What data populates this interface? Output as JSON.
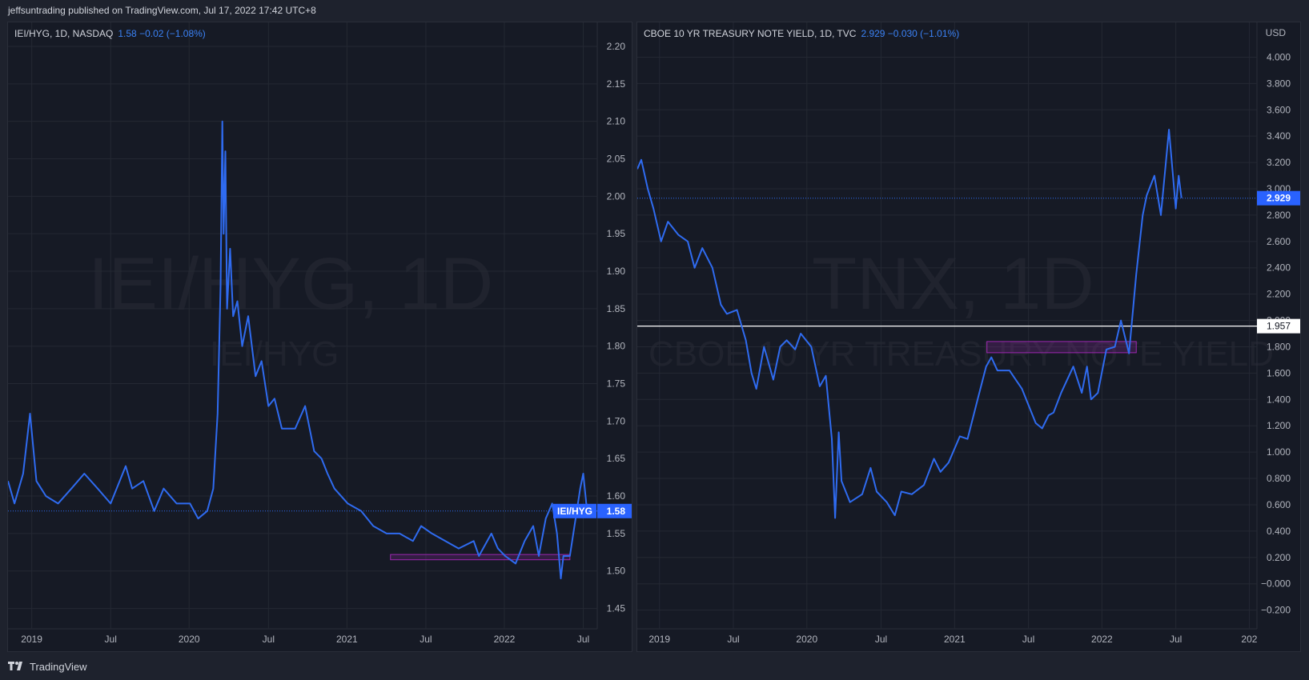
{
  "header": {
    "text": "jeffsuntrading published on TradingView.com, Jul 17, 2022 17:42 UTC+8"
  },
  "footer": {
    "brand": "TradingView"
  },
  "left_pane": {
    "legend_symbol": "IEI/HYG, 1D, NASDAQ",
    "legend_values": "1.58  −0.02 (−1.08%)",
    "watermark_big": "IEI/HYG, 1D",
    "watermark_small": "IEI/HYG",
    "price_tag_symbol": "IEI/HYG",
    "price_tag_value": "1.58",
    "colors": {
      "line": "#2f6bf0",
      "accent": "#2962ff",
      "zone": "#9c27b0"
    }
  },
  "right_pane": {
    "legend_symbol": "CBOE 10 YR TREASURY NOTE YIELD, 1D, TVC",
    "legend_values": "2.929  −0.030 (−1.01%)",
    "watermark_big": "TNX, 1D",
    "watermark_small": "CBOE 10 YR TREASURY NOTE YIELD",
    "currency": "USD",
    "price_tag_value": "2.929",
    "level_tag_value": "1.957",
    "colors": {
      "line": "#2f6bf0",
      "accent": "#2962ff",
      "zone": "#9c27b0",
      "level": "#ffffff"
    }
  },
  "chart_data": [
    {
      "type": "line",
      "title": "IEI/HYG, 1D, NASDAQ",
      "xlabel": "",
      "ylabel": "",
      "x_ticks": [
        "2019",
        "Jul",
        "2020",
        "Jul",
        "2021",
        "Jul",
        "2022",
        "Jul"
      ],
      "y_ticks": [
        "2.20",
        "2.15",
        "2.10",
        "2.05",
        "2.00",
        "1.95",
        "1.90",
        "1.85",
        "1.80",
        "1.75",
        "1.70",
        "1.65",
        "1.60",
        "1.55",
        "1.50",
        "1.45"
      ],
      "ylim": [
        1.425,
        2.232
      ],
      "xlim": [
        "2018-11-05",
        "2022-10-25"
      ],
      "last_value": 1.58,
      "change": "−0.02 (−1.08%)",
      "support_zone": {
        "x_start": "2021-04-10",
        "x_end": "2022-05-31",
        "y_low": 1.515,
        "y_high": 1.522
      },
      "grid": true,
      "series": [
        {
          "x": [
            "2018-11-05",
            "2018-11-20",
            "2018-12-10",
            "2018-12-26",
            "2019-01-10",
            "2019-02-01",
            "2019-03-01",
            "2019-04-01",
            "2019-05-01",
            "2019-06-01",
            "2019-07-01",
            "2019-08-05",
            "2019-08-20",
            "2019-09-15",
            "2019-10-10",
            "2019-11-01",
            "2019-12-01",
            "2020-01-01",
            "2020-01-20",
            "2020-02-10",
            "2020-02-24",
            "2020-03-05",
            "2020-03-12",
            "2020-03-16",
            "2020-03-19",
            "2020-03-23",
            "2020-03-27",
            "2020-04-03",
            "2020-04-10",
            "2020-04-20",
            "2020-05-01",
            "2020-05-15",
            "2020-06-01",
            "2020-06-15",
            "2020-07-01",
            "2020-07-15",
            "2020-08-01",
            "2020-09-01",
            "2020-09-24",
            "2020-10-15",
            "2020-11-01",
            "2020-11-15",
            "2020-12-01",
            "2021-01-01",
            "2021-02-01",
            "2021-03-01",
            "2021-04-01",
            "2021-05-01",
            "2021-06-01",
            "2021-06-20",
            "2021-07-15",
            "2021-08-15",
            "2021-09-15",
            "2021-10-20",
            "2021-11-01",
            "2021-11-30",
            "2021-12-15",
            "2022-01-01",
            "2022-01-25",
            "2022-02-15",
            "2022-03-07",
            "2022-03-20",
            "2022-04-05",
            "2022-04-20",
            "2022-05-01",
            "2022-05-10",
            "2022-05-16",
            "2022-05-31",
            "2022-06-16",
            "2022-06-24",
            "2022-07-01",
            "2022-07-08",
            "2022-07-15"
          ],
          "values": [
            1.62,
            1.59,
            1.63,
            1.71,
            1.62,
            1.6,
            1.59,
            1.61,
            1.63,
            1.61,
            1.59,
            1.64,
            1.61,
            1.62,
            1.58,
            1.61,
            1.59,
            1.59,
            1.57,
            1.58,
            1.61,
            1.71,
            1.88,
            2.1,
            1.95,
            2.06,
            1.85,
            1.93,
            1.84,
            1.86,
            1.8,
            1.84,
            1.76,
            1.78,
            1.72,
            1.73,
            1.69,
            1.69,
            1.72,
            1.66,
            1.65,
            1.63,
            1.61,
            1.59,
            1.58,
            1.56,
            1.55,
            1.55,
            1.54,
            1.56,
            1.55,
            1.54,
            1.53,
            1.54,
            1.52,
            1.55,
            1.53,
            1.52,
            1.51,
            1.54,
            1.56,
            1.52,
            1.57,
            1.59,
            1.55,
            1.49,
            1.52,
            1.52,
            1.58,
            1.61,
            1.63,
            1.59,
            1.58
          ]
        }
      ]
    },
    {
      "type": "line",
      "title": "CBOE 10 YR TREASURY NOTE YIELD, 1D, TVC",
      "xlabel": "",
      "ylabel": "USD",
      "x_ticks": [
        "2019",
        "Jul",
        "2020",
        "Jul",
        "2021",
        "Jul",
        "2022",
        "Jul",
        "202"
      ],
      "y_ticks": [
        "4.000",
        "3.800",
        "3.600",
        "3.400",
        "3.200",
        "3.000",
        "2.800",
        "2.600",
        "2.400",
        "2.200",
        "2.000",
        "1.800",
        "1.600",
        "1.400",
        "1.200",
        "1.000",
        "0.800",
        "0.600",
        "0.400",
        "0.200",
        "−0.000",
        "−0.200"
      ],
      "ylim": [
        -0.33,
        4.264
      ],
      "xlim": [
        "2018-11-05",
        "2023-01-18"
      ],
      "last_value": 2.929,
      "change": "−0.030 (−1.01%)",
      "horizontal_level": 1.957,
      "resistance_zone": {
        "x_start": "2021-03-20",
        "x_end": "2022-03-25",
        "y_low": 1.755,
        "y_high": 1.84
      },
      "grid": true,
      "series": [
        {
          "x": [
            "2018-11-05",
            "2018-11-15",
            "2018-12-01",
            "2018-12-15",
            "2019-01-03",
            "2019-01-20",
            "2019-02-15",
            "2019-03-10",
            "2019-03-27",
            "2019-04-15",
            "2019-05-10",
            "2019-05-31",
            "2019-06-15",
            "2019-07-10",
            "2019-08-01",
            "2019-08-15",
            "2019-08-27",
            "2019-09-15",
            "2019-10-08",
            "2019-10-25",
            "2019-11-10",
            "2019-12-01",
            "2019-12-15",
            "2020-01-10",
            "2020-01-31",
            "2020-02-15",
            "2020-03-01",
            "2020-03-09",
            "2020-03-18",
            "2020-03-25",
            "2020-04-15",
            "2020-05-15",
            "2020-06-05",
            "2020-06-20",
            "2020-07-15",
            "2020-08-04",
            "2020-08-20",
            "2020-09-15",
            "2020-10-15",
            "2020-11-09",
            "2020-11-25",
            "2020-12-15",
            "2021-01-12",
            "2021-01-31",
            "2021-02-25",
            "2021-03-18",
            "2021-03-31",
            "2021-04-15",
            "2021-05-15",
            "2021-06-15",
            "2021-07-19",
            "2021-08-04",
            "2021-08-20",
            "2021-09-01",
            "2021-09-20",
            "2021-10-20",
            "2021-11-10",
            "2021-11-23",
            "2021-12-03",
            "2021-12-20",
            "2022-01-10",
            "2022-01-31",
            "2022-02-15",
            "2022-03-07",
            "2022-03-25",
            "2022-04-10",
            "2022-04-20",
            "2022-05-09",
            "2022-05-25",
            "2022-06-14",
            "2022-06-24",
            "2022-07-01",
            "2022-07-08",
            "2022-07-15"
          ],
          "values": [
            3.15,
            3.22,
            3.0,
            2.85,
            2.6,
            2.75,
            2.65,
            2.6,
            2.4,
            2.55,
            2.4,
            2.12,
            2.05,
            2.08,
            1.85,
            1.6,
            1.48,
            1.8,
            1.55,
            1.8,
            1.85,
            1.78,
            1.9,
            1.8,
            1.5,
            1.58,
            1.1,
            0.5,
            1.15,
            0.78,
            0.62,
            0.68,
            0.88,
            0.7,
            0.62,
            0.52,
            0.7,
            0.68,
            0.75,
            0.95,
            0.85,
            0.92,
            1.12,
            1.1,
            1.4,
            1.65,
            1.72,
            1.62,
            1.62,
            1.48,
            1.22,
            1.18,
            1.28,
            1.3,
            1.45,
            1.65,
            1.45,
            1.65,
            1.4,
            1.45,
            1.78,
            1.8,
            2.0,
            1.75,
            2.35,
            2.8,
            2.95,
            3.1,
            2.8,
            3.45,
            3.1,
            2.85,
            3.1,
            2.93
          ]
        }
      ]
    }
  ]
}
